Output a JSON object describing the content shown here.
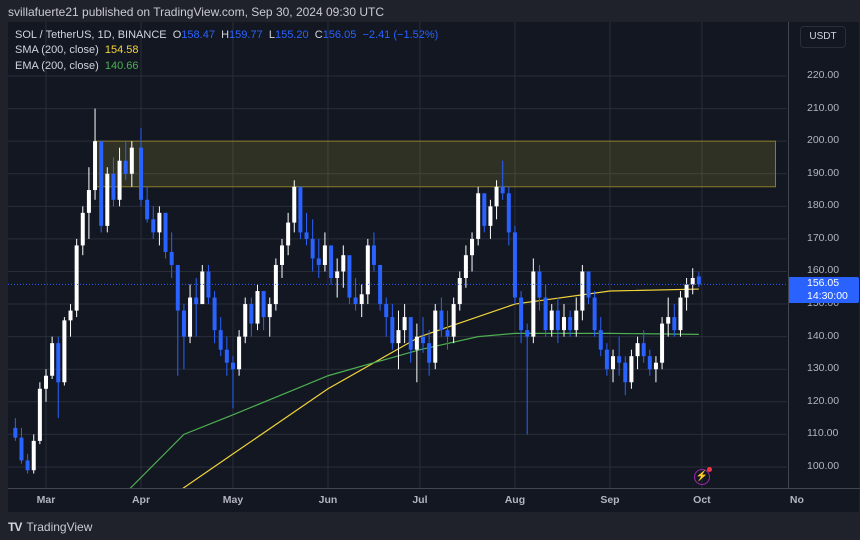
{
  "header": {
    "publisher_line": "svillafuerte21 published on TradingView.com, Sep 30, 2024 09:30 UTC"
  },
  "legend": {
    "symbol": "SOL / TetherUS, 1D, BINANCE",
    "open_label": "O",
    "open": "158.47",
    "high_label": "H",
    "high": "159.77",
    "low_label": "L",
    "low": "155.20",
    "close_label": "C",
    "close": "156.05",
    "change": "−2.41 (−1.52%)",
    "sma_label": "SMA (200, close)",
    "sma_value": "154.58",
    "ema_label": "EMA (200, close)",
    "ema_value": "140.66"
  },
  "price_axis": {
    "currency": "USDT",
    "ticks": [
      "220.00",
      "210.00",
      "200.00",
      "190.00",
      "180.00",
      "170.00",
      "160.00",
      "150.00",
      "140.00",
      "130.00",
      "120.00",
      "110.00",
      "100.00"
    ],
    "last_price": "156.05",
    "countdown": "14:30:00"
  },
  "time_axis": {
    "ticks": [
      "Mar",
      "Apr",
      "May",
      "Jun",
      "Jul",
      "Aug",
      "Sep",
      "Oct",
      "No"
    ]
  },
  "footer": {
    "brand": "TradingView",
    "brand_mark": "TV"
  },
  "colors": {
    "background": "#131722",
    "up_candle": "#ffffff",
    "down_candle": "#2962ff",
    "sma": "#f0d33b",
    "ema": "#4caf50",
    "zone_fill": "rgba(255,235,59,0.12)",
    "zone_border": "#8c7d2a",
    "grid": "#2a2e39"
  },
  "chart_data": {
    "type": "candlestick",
    "title": "SOL / TetherUS, 1D, BINANCE",
    "xlabel": "",
    "ylabel": "USDT",
    "ylim": [
      92,
      228
    ],
    "x_range": [
      "2024-02-17",
      "2024-11-03"
    ],
    "grid": true,
    "legend_position": "top-left",
    "resistance_zone": {
      "from_price": 186,
      "to_price": 200,
      "from_date": "2024-03-17",
      "to_date": "2024-10-25"
    },
    "indicators": [
      {
        "name": "SMA (200, close)",
        "last": 154.58,
        "points": [
          [
            "2024-04-14",
            93
          ],
          [
            "2024-05-01",
            104
          ],
          [
            "2024-06-01",
            124
          ],
          [
            "2024-07-01",
            140
          ],
          [
            "2024-08-01",
            150
          ],
          [
            "2024-09-01",
            154
          ],
          [
            "2024-09-30",
            154.6
          ]
        ]
      },
      {
        "name": "EMA (200, close)",
        "last": 140.66,
        "points": [
          [
            "2024-03-28",
            93
          ],
          [
            "2024-04-15",
            110
          ],
          [
            "2024-05-01",
            116
          ],
          [
            "2024-06-01",
            128
          ],
          [
            "2024-07-01",
            136
          ],
          [
            "2024-07-20",
            140
          ],
          [
            "2024-08-01",
            141
          ],
          [
            "2024-09-01",
            141
          ],
          [
            "2024-09-30",
            140.7
          ]
        ]
      }
    ],
    "ohlc": [
      [
        "02-20",
        112,
        115,
        108,
        109
      ],
      [
        "02-22",
        109,
        112,
        101,
        102
      ],
      [
        "02-24",
        102,
        104,
        98,
        99
      ],
      [
        "02-26",
        99,
        110,
        98,
        108
      ],
      [
        "02-28",
        108,
        126,
        107,
        124
      ],
      [
        "03-01",
        124,
        130,
        120,
        128
      ],
      [
        "03-03",
        128,
        140,
        127,
        138
      ],
      [
        "03-05",
        138,
        140,
        115,
        126
      ],
      [
        "03-07",
        126,
        146,
        125,
        145
      ],
      [
        "03-09",
        145,
        150,
        140,
        148
      ],
      [
        "03-11",
        148,
        170,
        146,
        168
      ],
      [
        "03-13",
        168,
        180,
        165,
        178
      ],
      [
        "03-15",
        178,
        192,
        170,
        185
      ],
      [
        "03-17",
        185,
        210,
        182,
        200
      ],
      [
        "03-19",
        200,
        198,
        172,
        174
      ],
      [
        "03-21",
        174,
        192,
        172,
        190
      ],
      [
        "03-23",
        190,
        195,
        180,
        182
      ],
      [
        "03-25",
        182,
        198,
        180,
        194
      ],
      [
        "03-27",
        194,
        200,
        188,
        190
      ],
      [
        "03-29",
        190,
        200,
        186,
        198
      ],
      [
        "04-01",
        198,
        204,
        180,
        182
      ],
      [
        "04-03",
        182,
        186,
        175,
        176
      ],
      [
        "04-05",
        176,
        180,
        170,
        172
      ],
      [
        "04-07",
        172,
        180,
        168,
        178
      ],
      [
        "04-09",
        178,
        176,
        164,
        166
      ],
      [
        "04-11",
        166,
        172,
        158,
        162
      ],
      [
        "04-13",
        162,
        160,
        128,
        148
      ],
      [
        "04-15",
        148,
        150,
        130,
        140
      ],
      [
        "04-17",
        140,
        156,
        138,
        152
      ],
      [
        "04-19",
        152,
        158,
        140,
        150
      ],
      [
        "04-21",
        150,
        162,
        150,
        160
      ],
      [
        "04-23",
        160,
        162,
        150,
        152
      ],
      [
        "04-25",
        152,
        154,
        138,
        142
      ],
      [
        "04-27",
        142,
        146,
        134,
        136
      ],
      [
        "04-29",
        136,
        140,
        128,
        132
      ],
      [
        "05-01",
        132,
        134,
        118,
        130
      ],
      [
        "05-03",
        130,
        142,
        128,
        140
      ],
      [
        "05-05",
        140,
        152,
        138,
        150
      ],
      [
        "05-07",
        150,
        152,
        140,
        144
      ],
      [
        "05-09",
        144,
        156,
        142,
        154
      ],
      [
        "05-11",
        154,
        152,
        142,
        146
      ],
      [
        "05-13",
        146,
        152,
        140,
        150
      ],
      [
        "05-15",
        150,
        164,
        148,
        162
      ],
      [
        "05-17",
        162,
        170,
        158,
        168
      ],
      [
        "05-19",
        168,
        178,
        165,
        175
      ],
      [
        "05-21",
        175,
        188,
        172,
        186
      ],
      [
        "05-23",
        186,
        184,
        170,
        172
      ],
      [
        "05-25",
        172,
        178,
        168,
        170
      ],
      [
        "05-27",
        170,
        176,
        160,
        164
      ],
      [
        "05-29",
        164,
        170,
        158,
        162
      ],
      [
        "05-31",
        162,
        172,
        160,
        168
      ],
      [
        "06-02",
        168,
        166,
        156,
        158
      ],
      [
        "06-04",
        158,
        164,
        152,
        160
      ],
      [
        "06-06",
        160,
        168,
        155,
        165
      ],
      [
        "06-08",
        165,
        162,
        150,
        152
      ],
      [
        "06-10",
        152,
        158,
        148,
        150
      ],
      [
        "06-12",
        150,
        156,
        146,
        153
      ],
      [
        "06-14",
        153,
        170,
        150,
        168
      ],
      [
        "06-16",
        168,
        172,
        160,
        162
      ],
      [
        "06-18",
        162,
        160,
        148,
        150
      ],
      [
        "06-20",
        150,
        152,
        140,
        146
      ],
      [
        "06-22",
        146,
        150,
        136,
        138
      ],
      [
        "06-24",
        138,
        148,
        130,
        142
      ],
      [
        "06-26",
        142,
        150,
        138,
        146
      ],
      [
        "06-28",
        146,
        144,
        132,
        136
      ],
      [
        "06-30",
        136,
        144,
        126,
        140
      ],
      [
        "07-02",
        140,
        146,
        135,
        138
      ],
      [
        "07-04",
        138,
        142,
        128,
        132
      ],
      [
        "07-06",
        132,
        150,
        130,
        148
      ],
      [
        "07-08",
        148,
        152,
        140,
        142
      ],
      [
        "07-10",
        142,
        148,
        136,
        140
      ],
      [
        "07-12",
        140,
        152,
        138,
        150
      ],
      [
        "07-14",
        150,
        160,
        148,
        158
      ],
      [
        "07-16",
        158,
        168,
        155,
        165
      ],
      [
        "07-18",
        165,
        172,
        160,
        170
      ],
      [
        "07-20",
        170,
        186,
        168,
        184
      ],
      [
        "07-22",
        184,
        184,
        172,
        174
      ],
      [
        "07-24",
        174,
        182,
        170,
        180
      ],
      [
        "07-26",
        180,
        188,
        176,
        186
      ],
      [
        "07-28",
        186,
        194,
        182,
        184
      ],
      [
        "07-30",
        184,
        186,
        168,
        172
      ],
      [
        "08-01",
        172,
        174,
        150,
        152
      ],
      [
        "08-03",
        152,
        154,
        138,
        142
      ],
      [
        "08-05",
        142,
        144,
        110,
        140
      ],
      [
        "08-07",
        140,
        164,
        138,
        160
      ],
      [
        "08-09",
        160,
        162,
        148,
        152
      ],
      [
        "08-11",
        152,
        156,
        140,
        142
      ],
      [
        "08-13",
        142,
        150,
        140,
        148
      ],
      [
        "08-15",
        148,
        152,
        138,
        142
      ],
      [
        "08-17",
        142,
        150,
        140,
        146
      ],
      [
        "08-19",
        146,
        148,
        140,
        142
      ],
      [
        "08-21",
        142,
        152,
        140,
        148
      ],
      [
        "08-23",
        148,
        162,
        145,
        160
      ],
      [
        "08-25",
        160,
        160,
        150,
        152
      ],
      [
        "08-27",
        152,
        154,
        140,
        142
      ],
      [
        "08-29",
        142,
        146,
        134,
        136
      ],
      [
        "08-31",
        136,
        138,
        128,
        130
      ],
      [
        "09-02",
        130,
        136,
        126,
        134
      ],
      [
        "09-04",
        134,
        140,
        128,
        132
      ],
      [
        "09-06",
        132,
        134,
        122,
        126
      ],
      [
        "09-08",
        126,
        136,
        124,
        134
      ],
      [
        "09-10",
        134,
        140,
        130,
        138
      ],
      [
        "09-12",
        138,
        142,
        132,
        134
      ],
      [
        "09-14",
        134,
        136,
        128,
        130
      ],
      [
        "09-16",
        130,
        134,
        126,
        132
      ],
      [
        "09-18",
        132,
        146,
        130,
        144
      ],
      [
        "09-20",
        144,
        152,
        140,
        146
      ],
      [
        "09-22",
        146,
        150,
        140,
        142
      ],
      [
        "09-24",
        142,
        154,
        140,
        152
      ],
      [
        "09-26",
        152,
        158,
        148,
        156
      ],
      [
        "09-28",
        156,
        161,
        153,
        158
      ],
      [
        "09-30",
        158.47,
        159.77,
        155.2,
        156.05
      ]
    ]
  }
}
